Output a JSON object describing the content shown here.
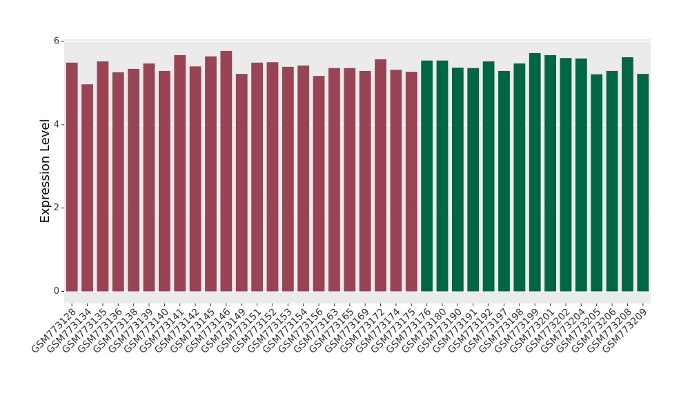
{
  "chart_data": {
    "type": "bar",
    "y_axis_label": "Expression Level",
    "categories": [
      "GSM773128",
      "GSM773134",
      "GSM773135",
      "GSM773136",
      "GSM773138",
      "GSM773139",
      "GSM773140",
      "GSM773141",
      "GSM773142",
      "GSM773145",
      "GSM773146",
      "GSM773149",
      "GSM773151",
      "GSM773152",
      "GSM773153",
      "GSM773154",
      "GSM773156",
      "GSM773163",
      "GSM773165",
      "GSM773169",
      "GSM773172",
      "GSM773174",
      "GSM773175",
      "GSM773176",
      "GSM773180",
      "GSM773190",
      "GSM773191",
      "GSM773192",
      "GSM773197",
      "GSM773198",
      "GSM773199",
      "GSM773201",
      "GSM773202",
      "GSM773204",
      "GSM773205",
      "GSM773206",
      "GSM773208",
      "GSM773209"
    ],
    "values": [
      5.49,
      4.97,
      5.52,
      5.26,
      5.34,
      5.47,
      5.29,
      5.67,
      5.4,
      5.64,
      5.77,
      5.22,
      5.49,
      5.5,
      5.39,
      5.42,
      5.17,
      5.36,
      5.36,
      5.29,
      5.57,
      5.32,
      5.27,
      5.54,
      5.54,
      5.37,
      5.36,
      5.52,
      5.29,
      5.47,
      5.72,
      5.67,
      5.6,
      5.59,
      5.21,
      5.29,
      5.62,
      5.22
    ],
    "bar_colors": [
      "#994455",
      "#994455",
      "#994455",
      "#994455",
      "#994455",
      "#994455",
      "#994455",
      "#994455",
      "#994455",
      "#994455",
      "#994455",
      "#994455",
      "#994455",
      "#994455",
      "#994455",
      "#994455",
      "#994455",
      "#994455",
      "#994455",
      "#994455",
      "#994455",
      "#994455",
      "#994455",
      "#006644",
      "#006644",
      "#006644",
      "#006644",
      "#006644",
      "#006644",
      "#006644",
      "#006644",
      "#006644",
      "#006644",
      "#006644",
      "#006644",
      "#006644",
      "#006644",
      "#006644"
    ],
    "ylim": [
      -0.29,
      6.05
    ],
    "yticks": [
      0,
      2,
      4,
      6
    ],
    "grid": true
  }
}
